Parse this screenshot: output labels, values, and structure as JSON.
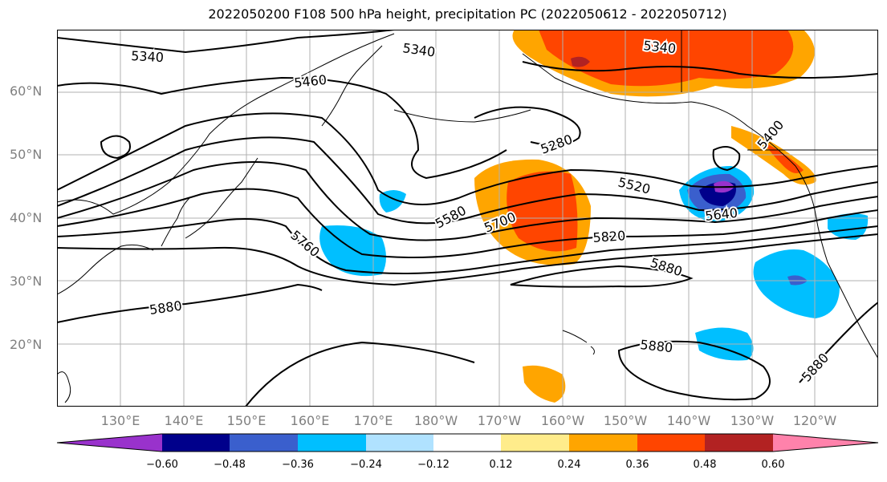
{
  "title": "2022050200 F108 500 hPa height, precipitation PC (2022050612 - 2022050712)",
  "map": {
    "lon_range": [
      120,
      250
    ],
    "lat_range": [
      10,
      70
    ],
    "lat_ticks": [
      "20°N",
      "30°N",
      "40°N",
      "50°N",
      "60°N"
    ],
    "lon_ticks": [
      "130°E",
      "140°E",
      "150°E",
      "160°E",
      "170°E",
      "180°W",
      "170°W",
      "160°W",
      "150°W",
      "140°W",
      "130°W",
      "120°W"
    ],
    "grid": true,
    "contour_labels": [
      "5340",
      "5340",
      "5340",
      "5460",
      "5400",
      "5280",
      "5520",
      "5580",
      "5640",
      "5700",
      "5760",
      "5820",
      "5880",
      "5880",
      "5880",
      "5880"
    ],
    "colors": {
      "neg_060": "#9932cc",
      "neg_048": "#00008b",
      "neg_036": "#3a5fcd",
      "neg_024": "#00bfff",
      "neg_012": "#b0e2ff",
      "neutral": "#ffffff",
      "pos_012": "#ffec8b",
      "pos_024": "#ffa500",
      "pos_036": "#ff4500",
      "pos_048": "#b22222",
      "pos_060": "#ff82ab"
    }
  },
  "colorbar": {
    "ticks": [
      "−0.60",
      "−0.48",
      "−0.36",
      "−0.24",
      "−0.12",
      "0.12",
      "0.24",
      "0.36",
      "0.48",
      "0.60"
    ],
    "colors": [
      "#9932cc",
      "#00008b",
      "#3a5fcd",
      "#00bfff",
      "#b0e2ff",
      "#ffffff",
      "#ffec8b",
      "#ffa500",
      "#ff4500",
      "#b22222",
      "#ff82ab"
    ]
  }
}
